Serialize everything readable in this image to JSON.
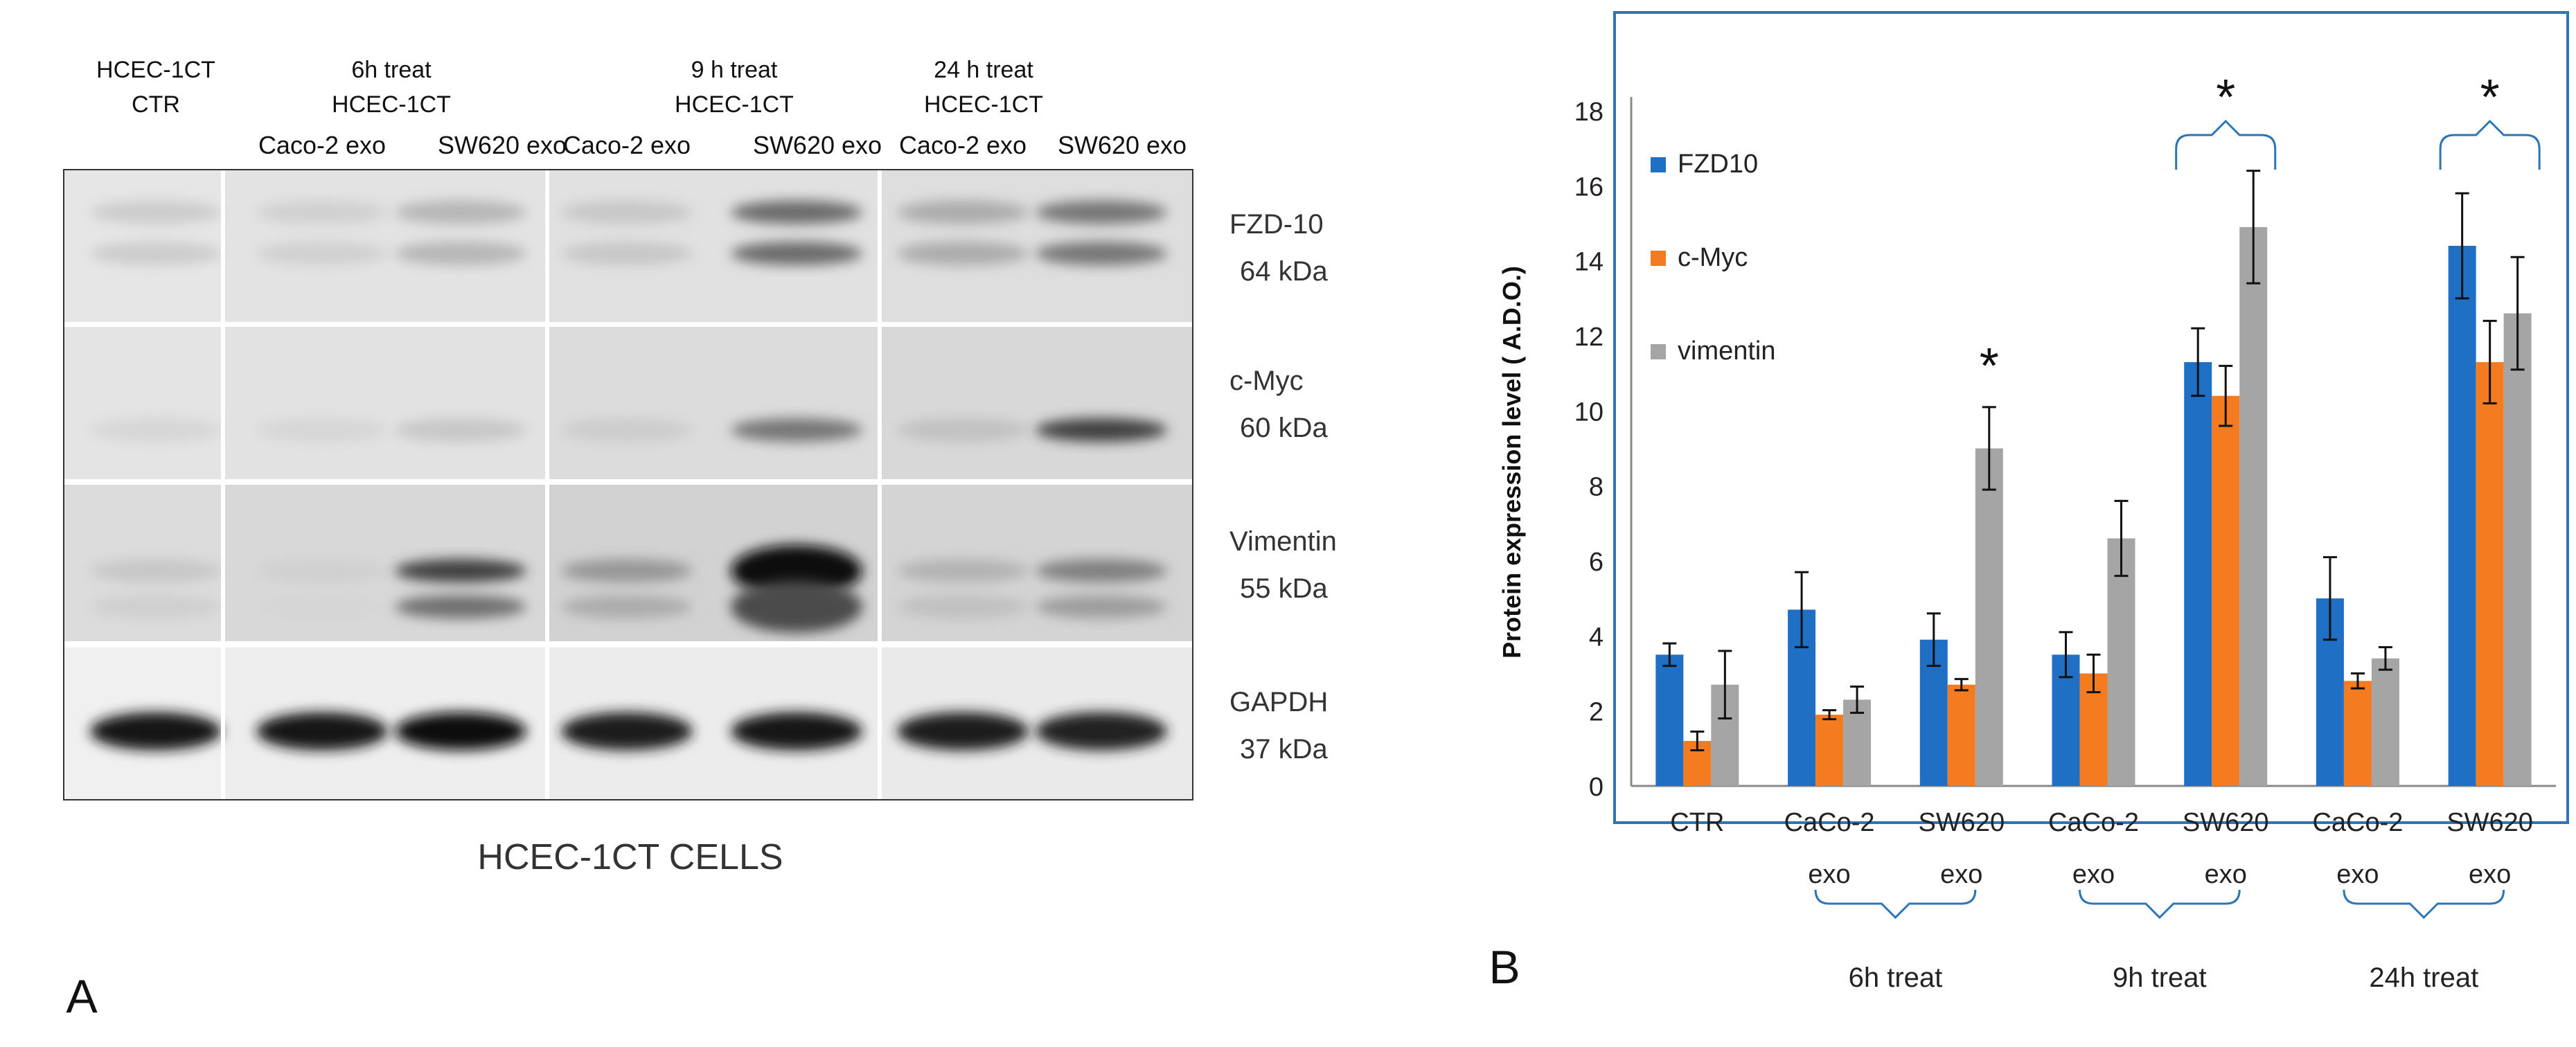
{
  "panel_a": {
    "letter": "A",
    "caption": "HCEC-1CT CELLS",
    "group_headers": [
      {
        "line1": "HCEC-1CT",
        "line2": "CTR"
      },
      {
        "line1": "6h treat",
        "line2": "HCEC-1CT"
      },
      {
        "line1": "9 h treat",
        "line2": "HCEC-1CT"
      },
      {
        "line1": "24 h treat",
        "line2": "HCEC-1CT"
      }
    ],
    "lane_labels": [
      "Caco-2 exo",
      "SW620 exo",
      "Caco-2 exo",
      "SW620 exo",
      "Caco-2 exo",
      "SW620 exo"
    ],
    "bands": [
      {
        "name": "FZD-10",
        "size": "64 kDa"
      },
      {
        "name": "c-Myc",
        "size": "60 kDa"
      },
      {
        "name": "Vimentin",
        "size": "55 kDa"
      },
      {
        "name": "GAPDH",
        "size": "37 kDa"
      }
    ],
    "band_intensity": [
      [
        0.1,
        0.08,
        0.2,
        0.12,
        0.55,
        0.25,
        0.5
      ],
      [
        0.05,
        0.05,
        0.12,
        0.1,
        0.5,
        0.15,
        0.75
      ],
      [
        0.12,
        0.08,
        0.75,
        0.35,
        1.0,
        0.22,
        0.45
      ],
      [
        0.95,
        0.95,
        0.97,
        0.92,
        0.95,
        0.92,
        0.88
      ]
    ]
  },
  "panel_b": {
    "letter": "B",
    "group_brackets": [
      "6h treat",
      "9h treat",
      "24h treat"
    ],
    "significance_mark": "*"
  },
  "chart_data": {
    "type": "bar",
    "categories": [
      {
        "line1": "CTR",
        "line2": ""
      },
      {
        "line1": "CaCo-2",
        "line2": "exo"
      },
      {
        "line1": "SW620",
        "line2": "exo"
      },
      {
        "line1": "CaCo-2",
        "line2": "exo"
      },
      {
        "line1": "SW620",
        "line2": "exo"
      },
      {
        "line1": "CaCo-2",
        "line2": "exo"
      },
      {
        "line1": "SW620",
        "line2": "exo"
      }
    ],
    "ylabel": "Protein expression level ( A.D.O.)",
    "ylim": [
      0,
      18
    ],
    "yticks": [
      0,
      2,
      4,
      6,
      8,
      10,
      12,
      14,
      16,
      18
    ],
    "grid": false,
    "legend_position": "top-left",
    "series": [
      {
        "name": "FZD10",
        "color": "#1f6fc5",
        "values": [
          3.5,
          4.7,
          3.9,
          3.5,
          11.3,
          5.0,
          14.4
        ],
        "errors": [
          0.3,
          1.0,
          0.7,
          0.6,
          0.9,
          1.1,
          1.4
        ]
      },
      {
        "name": "c-Myc",
        "color": "#f47b20",
        "values": [
          1.2,
          1.9,
          2.7,
          3.0,
          10.4,
          2.8,
          11.3
        ],
        "errors": [
          0.25,
          0.12,
          0.15,
          0.5,
          0.8,
          0.2,
          1.1
        ]
      },
      {
        "name": "vimentin",
        "color": "#a5a5a5",
        "values": [
          2.7,
          2.3,
          9.0,
          6.6,
          14.9,
          3.4,
          12.6
        ],
        "errors": [
          0.9,
          0.35,
          1.1,
          1.0,
          1.5,
          0.3,
          1.5
        ]
      }
    ],
    "significance": [
      {
        "category_index": 2,
        "text": "*",
        "bracket": false
      },
      {
        "category_index": 4,
        "text": "*",
        "bracket": true
      },
      {
        "category_index": 6,
        "text": "*",
        "bracket": true
      }
    ]
  }
}
